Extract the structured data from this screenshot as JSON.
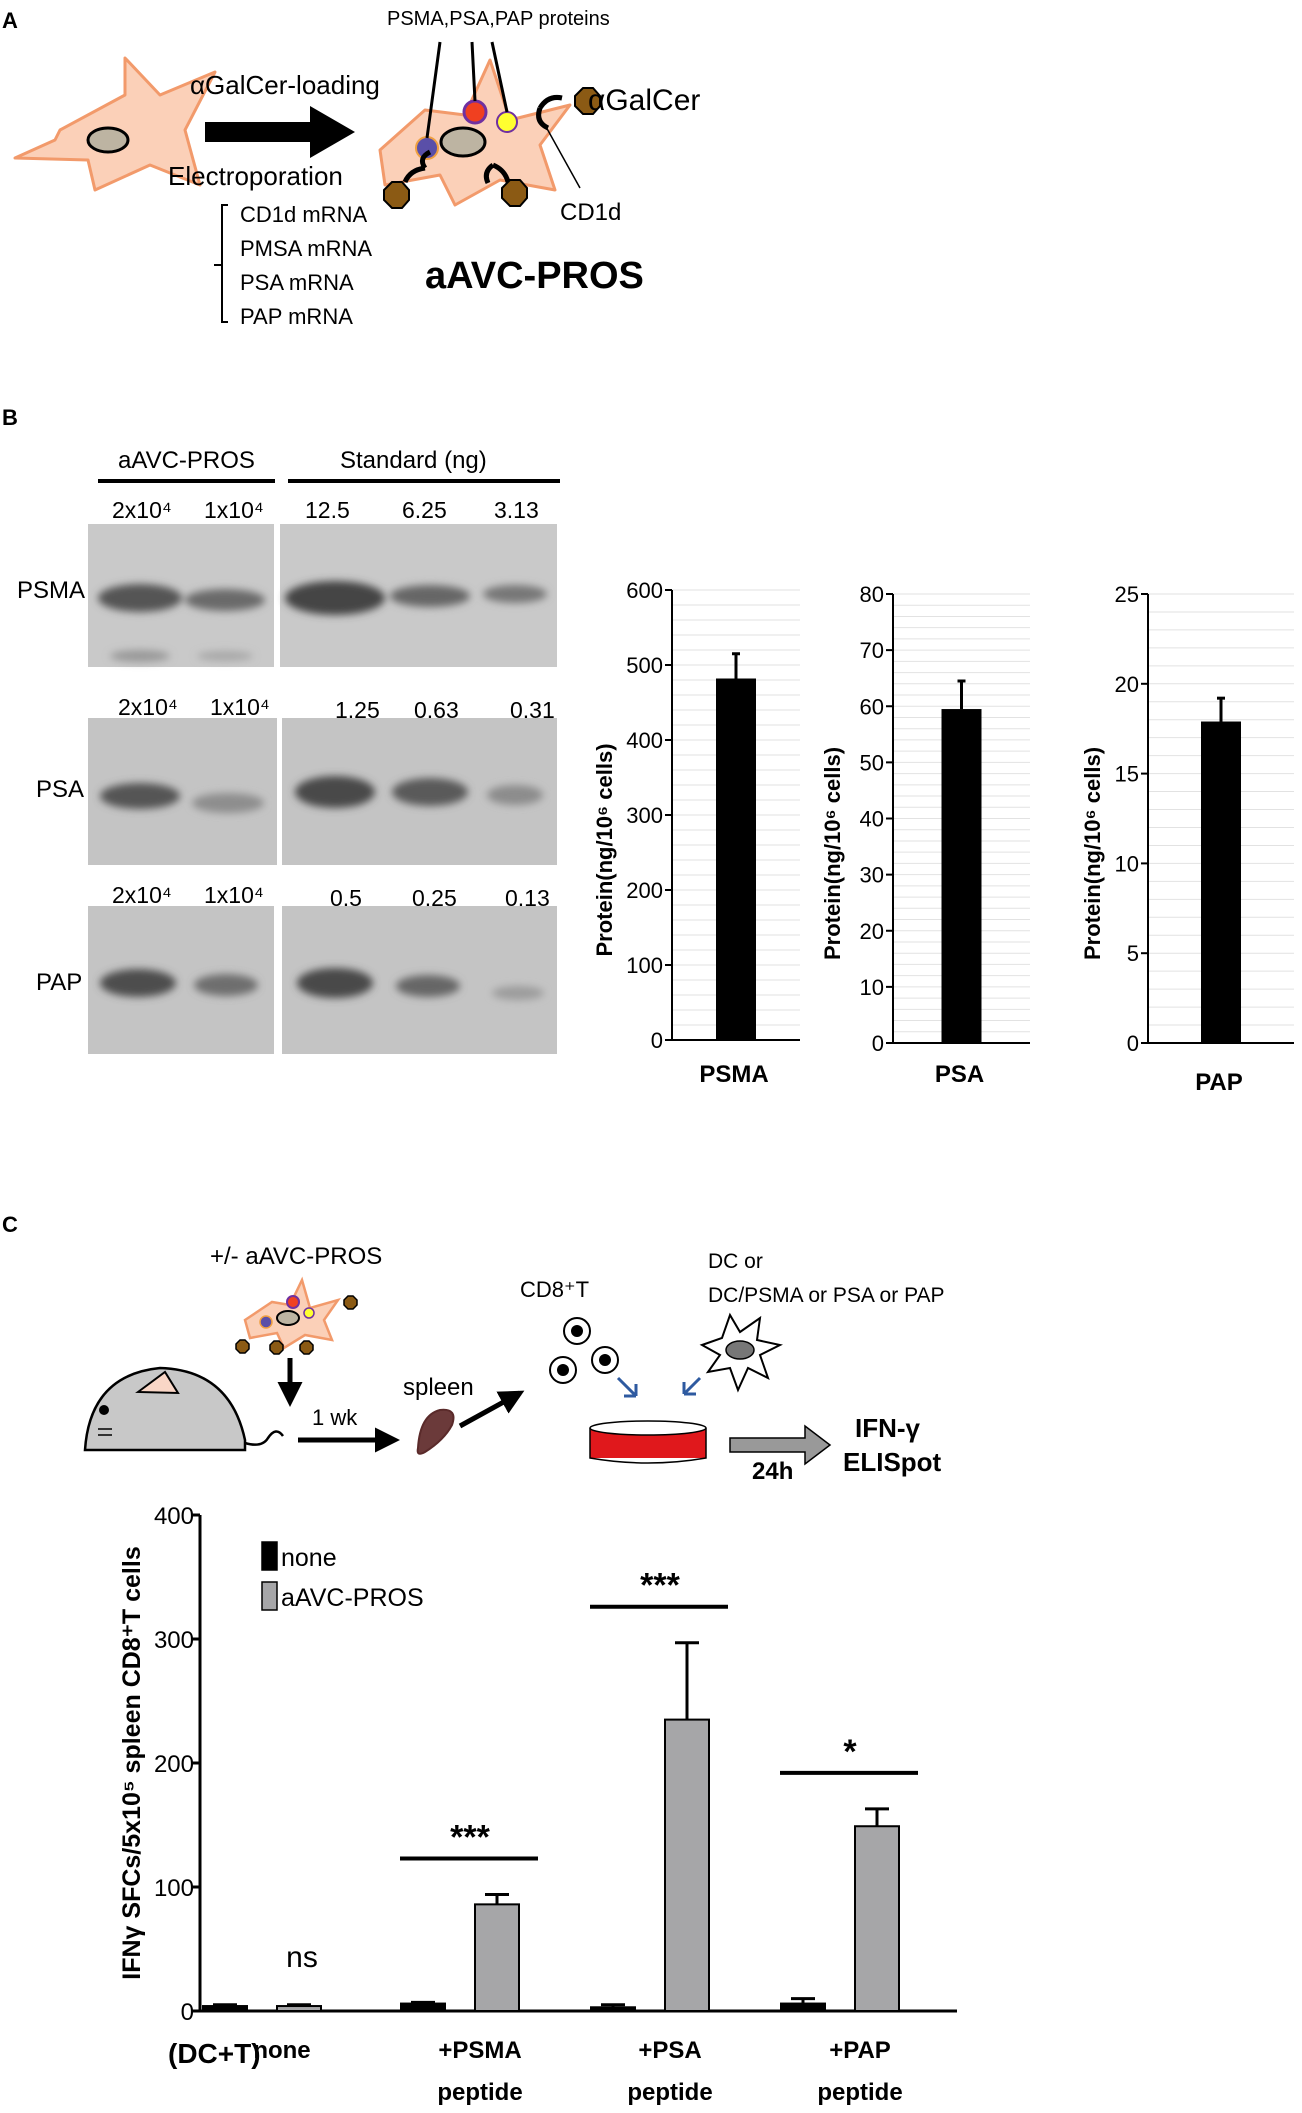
{
  "panel_a": {
    "letter": "A",
    "loading_label": "αGalCer-loading",
    "electroporation_label": "Electroporation",
    "mrna_list": [
      "CD1d mRNA",
      "PMSA mRNA",
      "PSA mRNA",
      "PAP mRNA"
    ],
    "proteins_label": "PSMA,PSA,PAP proteins",
    "agalcer_label": "αGalCer",
    "cd1d_label": "CD1d",
    "product_label": "aAVC-PROS"
  },
  "panel_b": {
    "letter": "B",
    "blot_header_left": "aAVC-PROS",
    "blot_header_right": "Standard (ng)",
    "blots": [
      {
        "protein": "PSMA",
        "left_lanes": [
          "2x10⁴",
          "1x10⁴"
        ],
        "right_lanes": [
          "12.5",
          "6.25",
          "3.13"
        ]
      },
      {
        "protein": "PSA",
        "left_lanes": [
          "2x10⁴",
          "1x10⁴"
        ],
        "right_lanes": [
          "1.25",
          "0.63",
          "0.31"
        ]
      },
      {
        "protein": "PAP",
        "left_lanes": [
          "2x10⁴",
          "1x10⁴"
        ],
        "right_lanes": [
          "0.5",
          "0.25",
          "0.13"
        ]
      }
    ]
  },
  "panel_c": {
    "letter": "C",
    "inject_label": "+/- aAVC-PROS",
    "duration_label": "1 wk",
    "spleen_label": "spleen",
    "cd8_label": "CD8⁺T",
    "dc_label_1": "DC or",
    "dc_label_2": "DC/PSMA or PSA or PAP",
    "incubation_label": "24h",
    "readout_1": "IFN-γ",
    "readout_2": "ELISpot"
  },
  "chart_data": [
    {
      "type": "bar",
      "title": "",
      "xlabel": "",
      "ylabel": "Protein(ng/10⁶ cells)",
      "categories": [
        "PSMA"
      ],
      "values": [
        482
      ],
      "errors": [
        33
      ],
      "ylim": [
        0,
        600
      ],
      "yticks": [
        0,
        100,
        200,
        300,
        400,
        500,
        600
      ],
      "grid": true,
      "color": "#000000"
    },
    {
      "type": "bar",
      "title": "",
      "xlabel": "",
      "ylabel": "Protein(ng/10⁶ cells)",
      "categories": [
        "PSA"
      ],
      "values": [
        59.5
      ],
      "errors": [
        5
      ],
      "ylim": [
        0,
        80
      ],
      "yticks": [
        0,
        10,
        20,
        30,
        40,
        50,
        60,
        70,
        80
      ],
      "grid": true,
      "color": "#000000"
    },
    {
      "type": "bar",
      "title": "",
      "xlabel": "",
      "ylabel": "Protein(ng/10⁶ cells)",
      "categories": [
        "PAP"
      ],
      "values": [
        17.9
      ],
      "errors": [
        1.3
      ],
      "ylim": [
        0,
        25
      ],
      "yticks": [
        0,
        5,
        10,
        15,
        20,
        25
      ],
      "grid": true,
      "color": "#000000"
    },
    {
      "type": "bar",
      "title": "",
      "xlabel": "",
      "ylabel": "IFNγ SFCs/5x10⁵ spleen CD8⁺T cells",
      "x_prefix": "(DC+T)",
      "categories": [
        "none",
        "+PSMA peptide",
        "+PSA peptide",
        "+PAP peptide"
      ],
      "series": [
        {
          "name": "none",
          "color": "#000000",
          "values": [
            4,
            6,
            3,
            6
          ],
          "errors": [
            1,
            1,
            2,
            4
          ]
        },
        {
          "name": "aAVC-PROS",
          "color": "#a6a6a8",
          "values": [
            4,
            86,
            235,
            149
          ],
          "errors": [
            1,
            8,
            62,
            14
          ]
        }
      ],
      "significance": [
        "ns",
        "***",
        "***",
        "*"
      ],
      "ylim": [
        0,
        400
      ],
      "yticks": [
        0,
        100,
        200,
        300,
        400
      ],
      "legend": "top-left"
    }
  ]
}
